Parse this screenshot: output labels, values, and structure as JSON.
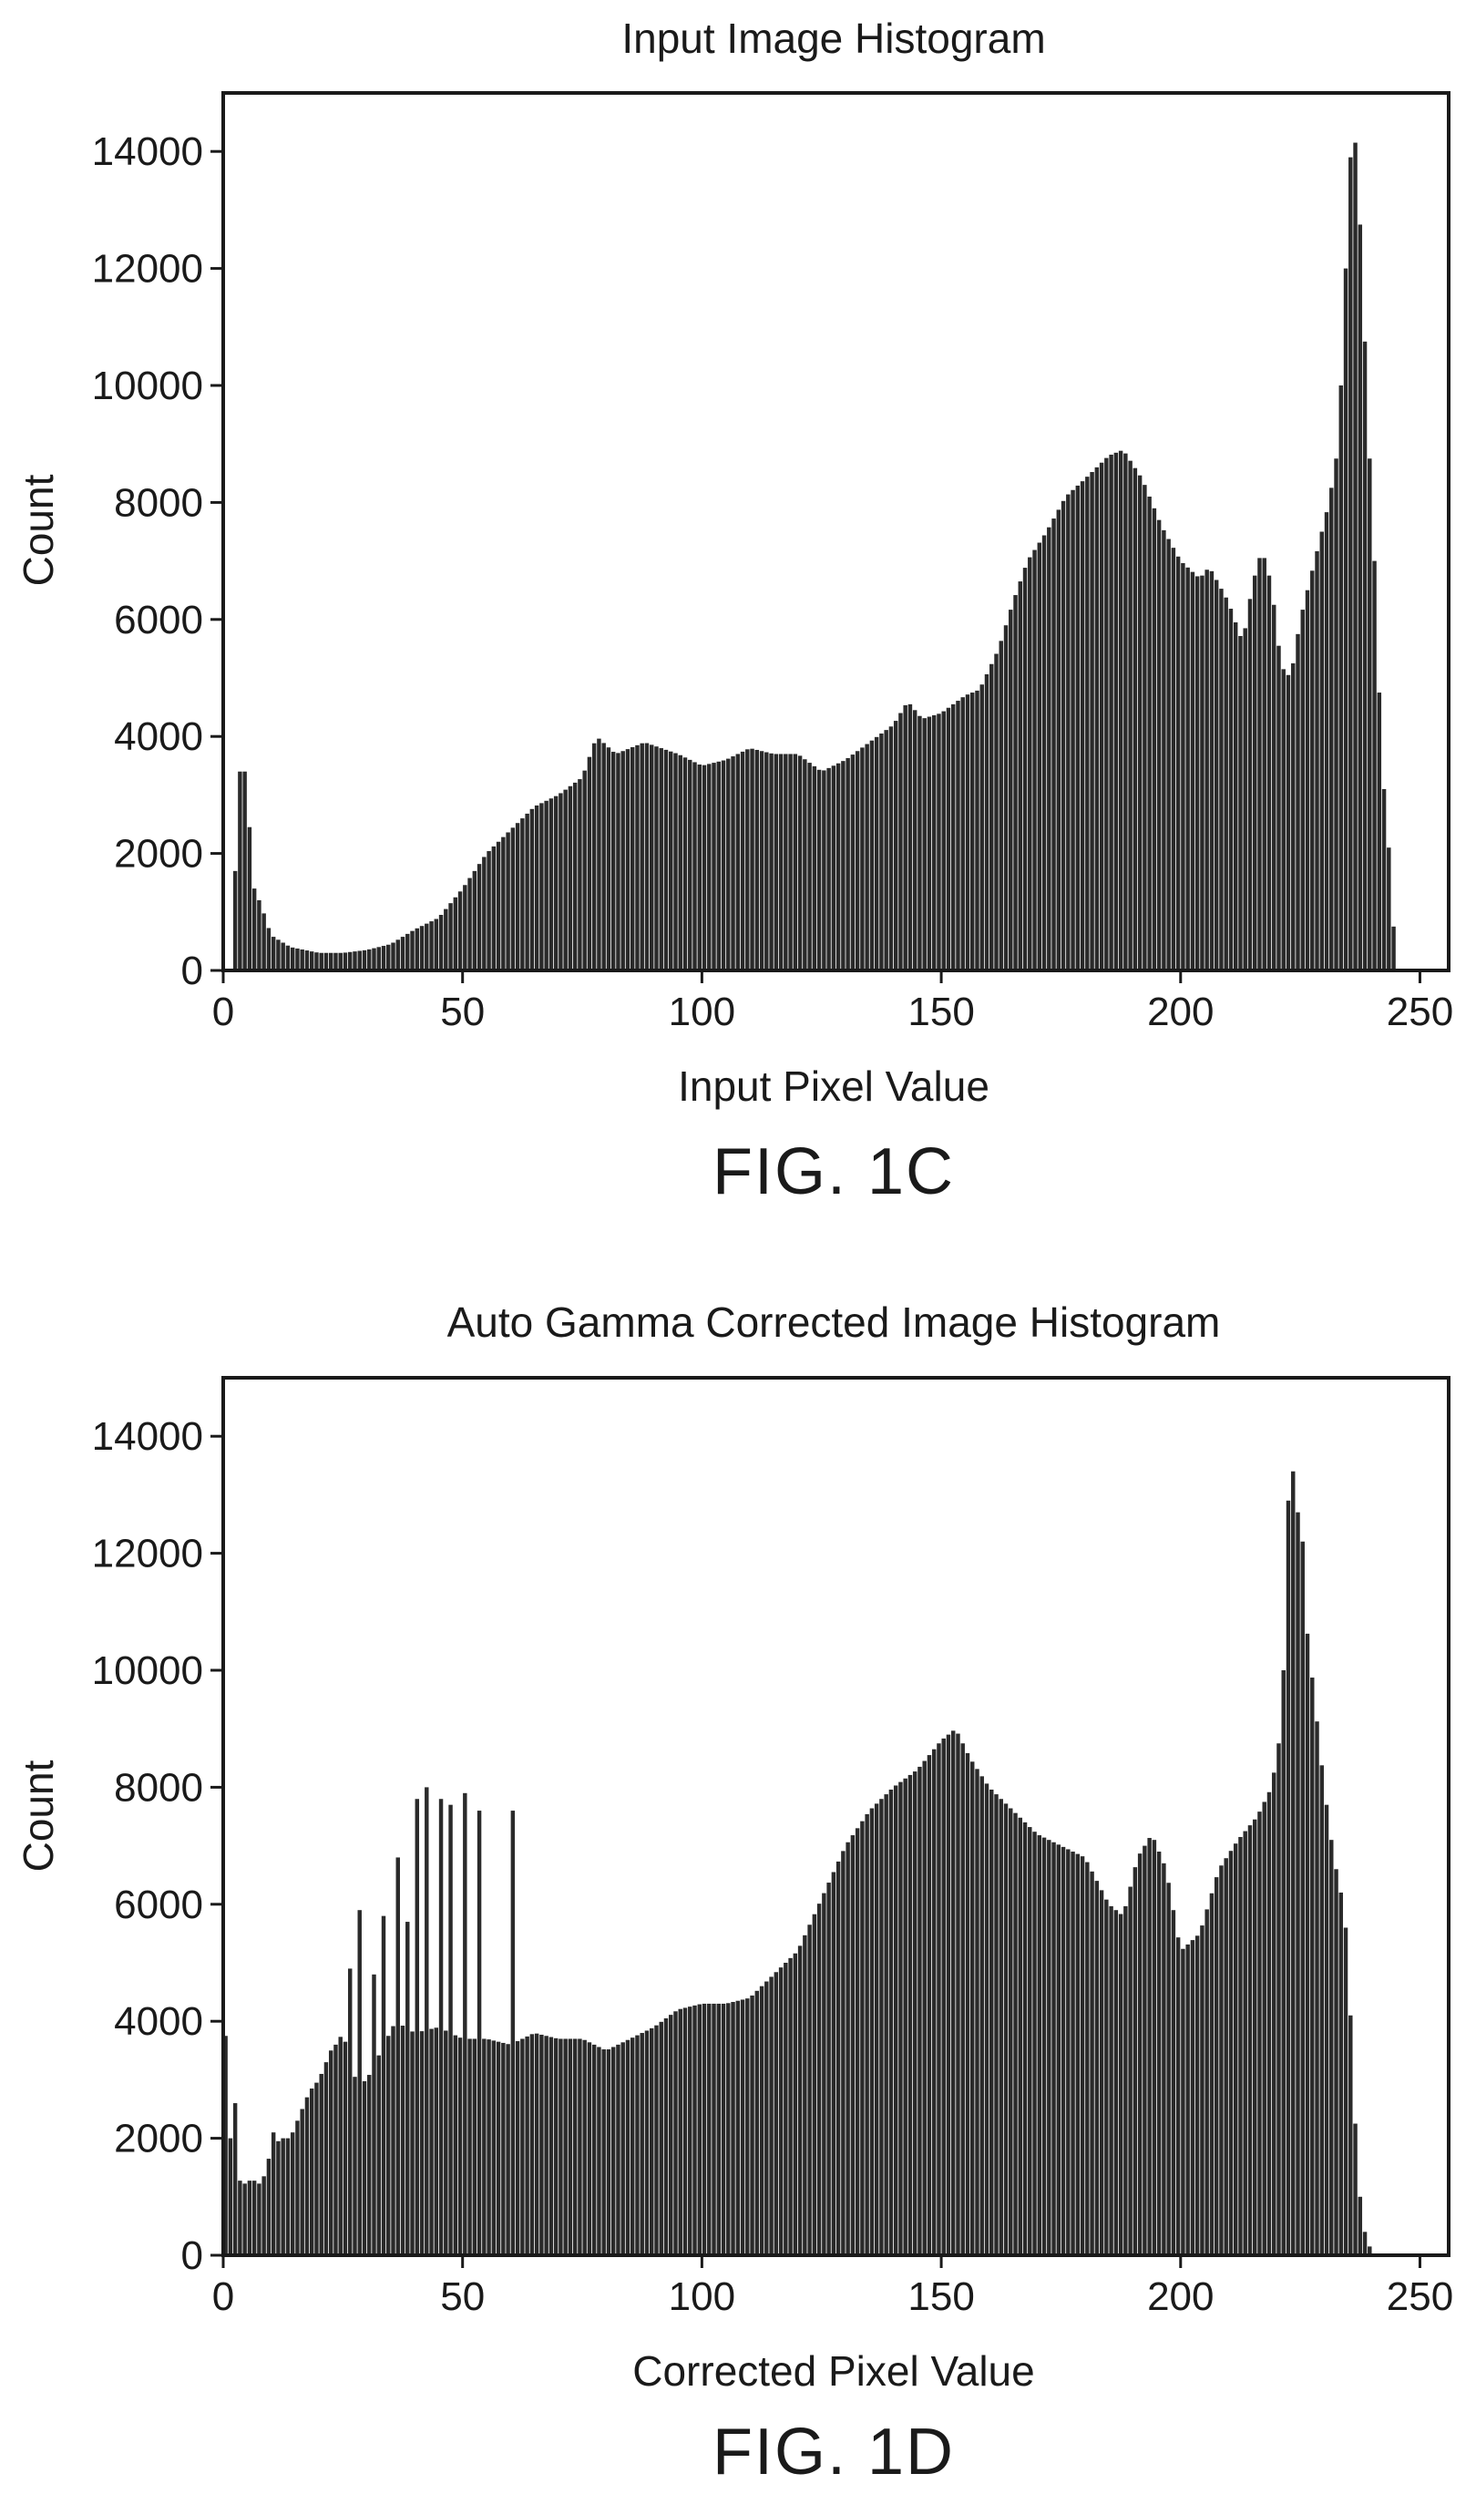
{
  "chart_data": [
    {
      "type": "bar",
      "title": "Input Image Histogram",
      "xlabel": "Input Pixel Value",
      "ylabel": "Count",
      "xlim": [
        0,
        256
      ],
      "ylim": [
        0,
        15000
      ],
      "xticks": [
        0,
        50,
        100,
        150,
        200,
        250
      ],
      "yticks": [
        0,
        2000,
        4000,
        6000,
        8000,
        10000,
        12000,
        14000
      ],
      "figure_label": "FIG. 1C",
      "grid": false,
      "color": "#2a2a2a",
      "profile": [
        [
          0,
          0
        ],
        [
          2,
          0
        ],
        [
          3,
          3400
        ],
        [
          5,
          3400
        ],
        [
          6,
          1500
        ],
        [
          8,
          1100
        ],
        [
          10,
          600
        ],
        [
          14,
          400
        ],
        [
          20,
          300
        ],
        [
          25,
          300
        ],
        [
          30,
          350
        ],
        [
          35,
          450
        ],
        [
          40,
          700
        ],
        [
          45,
          900
        ],
        [
          50,
          1400
        ],
        [
          55,
          2000
        ],
        [
          60,
          2400
        ],
        [
          65,
          2800
        ],
        [
          70,
          3000
        ],
        [
          75,
          3300
        ],
        [
          78,
          4000
        ],
        [
          82,
          3700
        ],
        [
          88,
          3900
        ],
        [
          95,
          3700
        ],
        [
          100,
          3500
        ],
        [
          105,
          3600
        ],
        [
          110,
          3800
        ],
        [
          115,
          3700
        ],
        [
          120,
          3700
        ],
        [
          125,
          3400
        ],
        [
          130,
          3600
        ],
        [
          135,
          3900
        ],
        [
          140,
          4200
        ],
        [
          143,
          4600
        ],
        [
          146,
          4300
        ],
        [
          150,
          4400
        ],
        [
          155,
          4700
        ],
        [
          158,
          4800
        ],
        [
          162,
          5500
        ],
        [
          165,
          6300
        ],
        [
          168,
          7000
        ],
        [
          172,
          7500
        ],
        [
          176,
          8100
        ],
        [
          180,
          8400
        ],
        [
          185,
          8800
        ],
        [
          188,
          8900
        ],
        [
          192,
          8400
        ],
        [
          196,
          7600
        ],
        [
          200,
          7000
        ],
        [
          204,
          6700
        ],
        [
          206,
          6900
        ],
        [
          210,
          6300
        ],
        [
          213,
          5600
        ],
        [
          215,
          6600
        ],
        [
          217,
          7200
        ],
        [
          219,
          6600
        ],
        [
          221,
          5200
        ],
        [
          223,
          5000
        ],
        [
          225,
          6000
        ],
        [
          228,
          7000
        ],
        [
          231,
          8000
        ],
        [
          233,
          9000
        ],
        [
          234,
          11000
        ],
        [
          235,
          13000
        ],
        [
          236,
          14800
        ],
        [
          237,
          13500
        ],
        [
          238,
          12000
        ],
        [
          239,
          9500
        ],
        [
          240,
          8000
        ],
        [
          241,
          6000
        ],
        [
          242,
          3500
        ],
        [
          243,
          2700
        ],
        [
          244,
          1500
        ],
        [
          245,
          0
        ],
        [
          256,
          0
        ]
      ]
    },
    {
      "type": "bar",
      "title": "Auto Gamma Corrected Image Histogram",
      "xlabel": "Corrected Pixel Value",
      "ylabel": "Count",
      "xlim": [
        0,
        256
      ],
      "ylim": [
        0,
        15000
      ],
      "xticks": [
        0,
        50,
        100,
        150,
        200,
        250
      ],
      "yticks": [
        0,
        2000,
        4000,
        6000,
        8000,
        10000,
        12000,
        14000
      ],
      "figure_label": "FIG. 1D",
      "grid": false,
      "color": "#2a2a2a",
      "profile": [
        [
          0,
          5000
        ],
        [
          1,
          2500
        ],
        [
          2,
          1500
        ],
        [
          4,
          1200
        ],
        [
          6,
          1300
        ],
        [
          8,
          1200
        ],
        [
          10,
          1800
        ],
        [
          12,
          2000
        ],
        [
          14,
          2000
        ],
        [
          16,
          2400
        ],
        [
          18,
          2800
        ],
        [
          20,
          3000
        ],
        [
          22,
          3400
        ],
        [
          25,
          3800
        ],
        [
          28,
          2900
        ],
        [
          30,
          3000
        ],
        [
          33,
          3500
        ],
        [
          36,
          4000
        ],
        [
          40,
          3800
        ],
        [
          45,
          3900
        ],
        [
          50,
          3700
        ],
        [
          55,
          3700
        ],
        [
          60,
          3600
        ],
        [
          65,
          3800
        ],
        [
          70,
          3700
        ],
        [
          75,
          3700
        ],
        [
          80,
          3500
        ],
        [
          85,
          3700
        ],
        [
          90,
          3900
        ],
        [
          95,
          4200
        ],
        [
          100,
          4300
        ],
        [
          105,
          4300
        ],
        [
          110,
          4400
        ],
        [
          115,
          4800
        ],
        [
          120,
          5200
        ],
        [
          125,
          6100
        ],
        [
          130,
          7000
        ],
        [
          135,
          7600
        ],
        [
          140,
          8000
        ],
        [
          145,
          8300
        ],
        [
          150,
          8800
        ],
        [
          153,
          9000
        ],
        [
          156,
          8500
        ],
        [
          160,
          8000
        ],
        [
          165,
          7600
        ],
        [
          170,
          7200
        ],
        [
          175,
          7000
        ],
        [
          180,
          6800
        ],
        [
          185,
          6000
        ],
        [
          188,
          5800
        ],
        [
          191,
          6800
        ],
        [
          194,
          7200
        ],
        [
          197,
          6600
        ],
        [
          200,
          5200
        ],
        [
          204,
          5500
        ],
        [
          208,
          6600
        ],
        [
          212,
          7100
        ],
        [
          216,
          7500
        ],
        [
          219,
          8000
        ],
        [
          221,
          9000
        ],
        [
          222,
          11000
        ],
        [
          223,
          14800
        ],
        [
          224,
          12000
        ],
        [
          225,
          13400
        ],
        [
          226,
          11000
        ],
        [
          228,
          9500
        ],
        [
          230,
          8000
        ],
        [
          232,
          6800
        ],
        [
          234,
          6000
        ],
        [
          235,
          5200
        ],
        [
          236,
          3000
        ],
        [
          237,
          1500
        ],
        [
          238,
          500
        ],
        [
          239,
          300
        ],
        [
          240,
          0
        ],
        [
          256,
          0
        ]
      ],
      "spikes": [
        [
          2,
          2600
        ],
        [
          10,
          2100
        ],
        [
          14,
          1600
        ],
        [
          18,
          2300
        ],
        [
          22,
          3500
        ],
        [
          26,
          4900
        ],
        [
          28,
          5900
        ],
        [
          31,
          4800
        ],
        [
          33,
          5800
        ],
        [
          36,
          6800
        ],
        [
          38,
          5700
        ],
        [
          40,
          7800
        ],
        [
          42,
          8000
        ],
        [
          45,
          7800
        ],
        [
          47,
          7700
        ],
        [
          50,
          7900
        ],
        [
          53,
          7600
        ],
        [
          60,
          7600
        ]
      ]
    }
  ]
}
